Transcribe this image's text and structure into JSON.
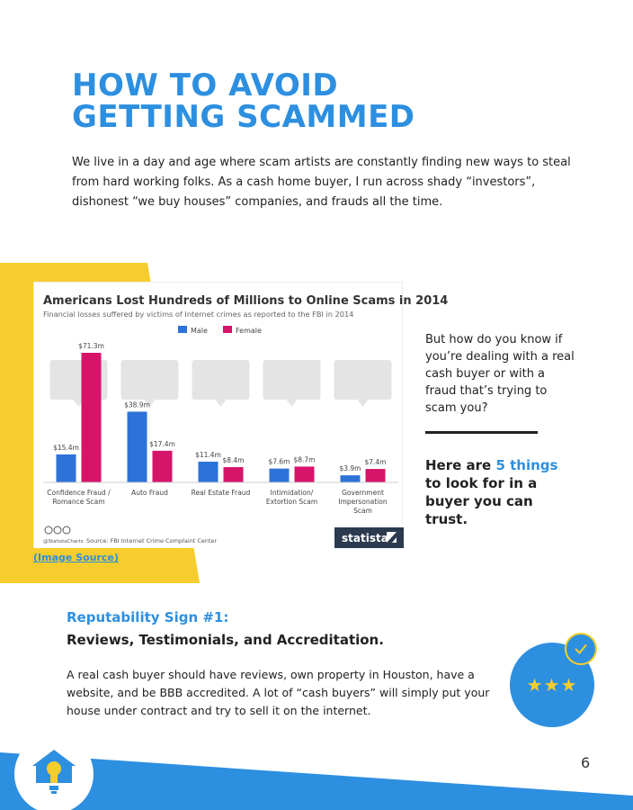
{
  "heading": {
    "line1": "HOW TO AVOID",
    "line2": "GETTING SCAMMED"
  },
  "intro": "We live in a day and age where scam artists are constantly finding new ways to steal from hard working folks. As a cash home buyer, I run across shady “investors”, dishonest “we buy houses” companies, and frauds all the time.",
  "image_source_link": "(Image Source)",
  "sidebar": {
    "question": "But how do you know if you’re dealing with a real cash buyer or with a fraud that’s trying to scam you?",
    "cta_pre": "Here are ",
    "cta_highlight": "5 things",
    "cta_post": " to look for in a buyer you can trust."
  },
  "sign": {
    "title": "Reputability Sign #1:",
    "subtitle": "Reviews, Testimonials, and Accreditation.",
    "body": "A real cash buyer should have reviews, own property in Houston, have a website, and be BBB accredited. A lot of “cash buyers” will simply put your house under contract and try to sell it on the internet."
  },
  "badge": {
    "stars": "★★★"
  },
  "page_number": "6",
  "colors": {
    "accent_blue": "#2d8fe0",
    "accent_yellow": "#f6cd2c",
    "male": "#2d72d9",
    "female": "#d6146a"
  },
  "icons": [
    "broken-heart-icon",
    "car-icon",
    "house-icon",
    "fist-icon",
    "section-sign-icon",
    "checkmark-icon",
    "star-icon",
    "house-lightbulb-icon"
  ],
  "chart_data": {
    "type": "bar",
    "title": "Americans Lost Hundreds of Millions to Online Scams in 2014",
    "subtitle": "Financial losses suffered by victims of Internet crimes as reported to the FBI in 2014",
    "categories": [
      [
        "Confidence Fraud /",
        "Romance Scam"
      ],
      [
        "Auto Fraud"
      ],
      [
        "Real Estate Fraud"
      ],
      [
        "Intimidation/",
        "Extortion Scam"
      ],
      [
        "Government",
        "Impersonation",
        "Scam"
      ]
    ],
    "series": [
      {
        "name": "Male",
        "values": [
          15.4,
          38.9,
          11.4,
          7.6,
          3.9
        ],
        "labels": [
          "$15.4m",
          "$38.9m",
          "$11.4m",
          "$7.6m",
          "$3.9m"
        ],
        "color": "#2d72d9"
      },
      {
        "name": "Female",
        "values": [
          71.3,
          17.4,
          8.4,
          8.7,
          7.4
        ],
        "labels": [
          "$71.3m",
          "$17.4m",
          "$8.4m",
          "$8.7m",
          "$7.4m"
        ],
        "color": "#d6146a"
      }
    ],
    "ylim": [
      0,
      71.3
    ],
    "source": "Source: FBI Internet Crime Complaint Center",
    "handle": "@StatistaCharts",
    "brand": "statista"
  }
}
